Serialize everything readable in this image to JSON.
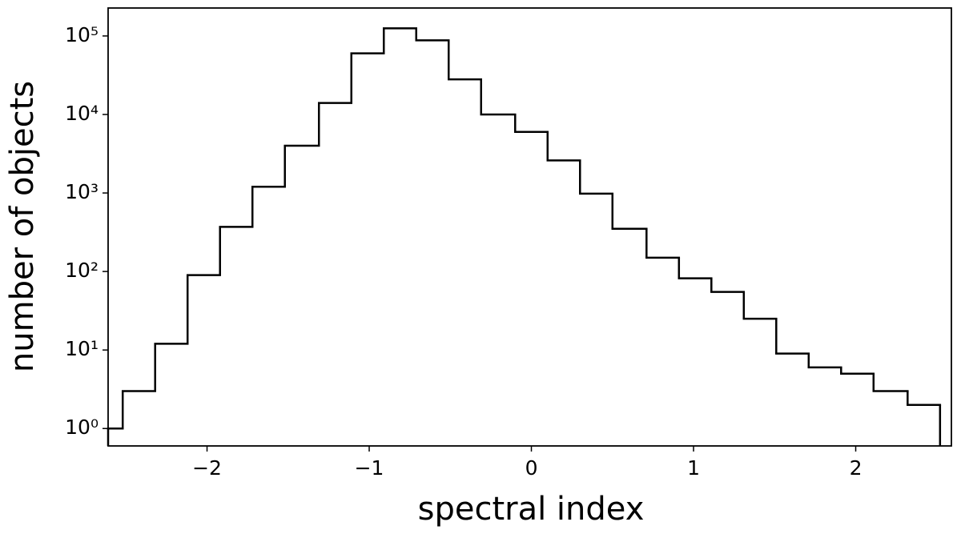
{
  "chart_data": {
    "type": "histogram",
    "xlabel": "spectral index",
    "ylabel": "number of objects",
    "bins": [
      -2.61,
      -2.52,
      -2.32,
      -2.12,
      -1.92,
      -1.72,
      -1.52,
      -1.31,
      -1.11,
      -0.91,
      -0.71,
      -0.51,
      -0.31,
      -0.1,
      0.1,
      0.3,
      0.5,
      0.71,
      0.91,
      1.11,
      1.31,
      1.51,
      1.71,
      1.91,
      2.11,
      2.32,
      2.52
    ],
    "values": [
      1,
      3,
      12,
      90,
      370,
      1200,
      4000,
      14000,
      60000,
      125000,
      88000,
      28000,
      10000,
      6000,
      2600,
      980,
      350,
      150,
      82,
      55,
      25,
      9,
      6,
      5,
      3,
      2
    ],
    "color": "#000000",
    "histtype": "step",
    "ylog": true,
    "xlim": [
      -2.61,
      2.59
    ],
    "ylim": [
      0.6,
      227000
    ],
    "xticks": [
      {
        "value": -2,
        "label": "−2"
      },
      {
        "value": -1,
        "label": "−1"
      },
      0,
      1,
      2
    ],
    "yticks": [
      {
        "value": 1,
        "label": "10⁰"
      },
      {
        "value": 10,
        "label": "10¹"
      },
      {
        "value": 100,
        "label": "10²"
      },
      {
        "value": 1000,
        "label": "10³"
      },
      {
        "value": 10000,
        "label": "10⁴"
      },
      {
        "value": 100000,
        "label": "10⁵"
      }
    ]
  }
}
